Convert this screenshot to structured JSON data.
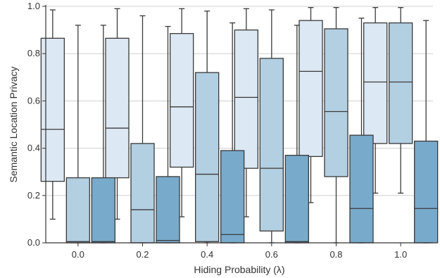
{
  "chart_data": {
    "type": "boxplot",
    "xlabel": "Hiding Probability (λ)",
    "ylabel": "Semantic Location Privacy",
    "categories": [
      "0.0",
      "0.2",
      "0.4",
      "0.6",
      "0.8",
      "1.0"
    ],
    "ylim": [
      0,
      1.0
    ],
    "yticks": [
      "0.0",
      "0.2",
      "0.4",
      "0.6",
      "0.8",
      "1.0"
    ],
    "grid": "horizontal",
    "colors": [
      "#dce8f3",
      "#b3cfe2",
      "#78aacb"
    ],
    "series": [
      {
        "boxes": [
          {
            "whislo": 0.1,
            "q1": 0.26,
            "med": 0.48,
            "q3": 0.865,
            "whishi": 0.985
          },
          {
            "whislo": 0.1,
            "q1": 0.275,
            "med": 0.485,
            "q3": 0.865,
            "whishi": 0.99
          },
          {
            "whislo": 0.11,
            "q1": 0.32,
            "med": 0.575,
            "q3": 0.885,
            "whishi": 0.99
          },
          {
            "whislo": 0.11,
            "q1": 0.315,
            "med": 0.615,
            "q3": 0.9,
            "whishi": 0.99
          },
          {
            "whislo": 0.17,
            "q1": 0.365,
            "med": 0.725,
            "q3": 0.94,
            "whishi": 0.995
          },
          {
            "whislo": 0.21,
            "q1": 0.42,
            "med": 0.68,
            "q3": 0.93,
            "whishi": 0.995
          }
        ]
      },
      {
        "boxes": [
          {
            "whislo": 0.0,
            "q1": 0.0,
            "med": 0.005,
            "q3": 0.275,
            "whishi": 0.92
          },
          {
            "whislo": 0.0,
            "q1": 0.0,
            "med": 0.14,
            "q3": 0.42,
            "whishi": 0.96
          },
          {
            "whislo": 0.0,
            "q1": 0.005,
            "med": 0.29,
            "q3": 0.72,
            "whishi": 0.98
          },
          {
            "whislo": 0.0,
            "q1": 0.05,
            "med": 0.315,
            "q3": 0.78,
            "whishi": 0.985
          },
          {
            "whislo": 0.0,
            "q1": 0.28,
            "med": 0.555,
            "q3": 0.905,
            "whishi": 0.995
          },
          {
            "whislo": 0.21,
            "q1": 0.42,
            "med": 0.68,
            "q3": 0.93,
            "whishi": 0.995
          }
        ]
      },
      {
        "boxes": [
          {
            "whislo": 0.0,
            "q1": 0.0,
            "med": 0.005,
            "q3": 0.275,
            "whishi": 0.92
          },
          {
            "whislo": 0.0,
            "q1": 0.0,
            "med": 0.01,
            "q3": 0.28,
            "whishi": 0.915
          },
          {
            "whislo": 0.0,
            "q1": 0.0,
            "med": 0.035,
            "q3": 0.39,
            "whishi": 0.93
          },
          {
            "whislo": 0.0,
            "q1": 0.0,
            "med": 0.005,
            "q3": 0.37,
            "whishi": 0.92
          },
          {
            "whislo": 0.0,
            "q1": 0.0,
            "med": 0.145,
            "q3": 0.455,
            "whishi": 0.95
          },
          {
            "whislo": 0.0,
            "q1": 0.0,
            "med": 0.145,
            "q3": 0.43,
            "whishi": 0.94
          }
        ]
      }
    ]
  }
}
